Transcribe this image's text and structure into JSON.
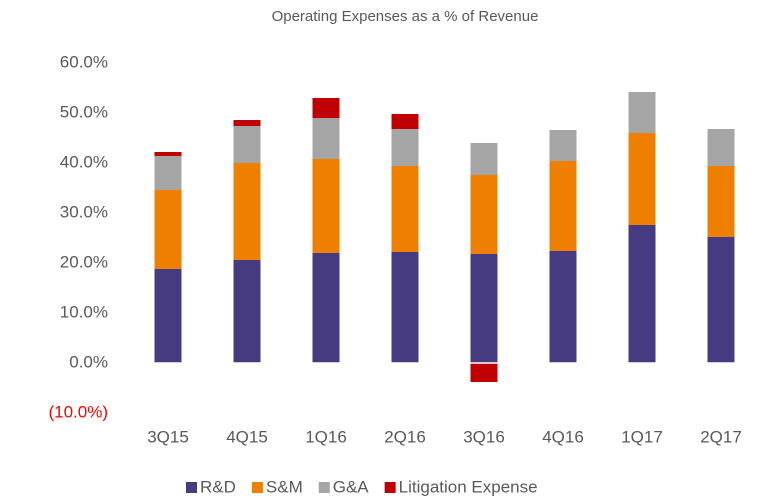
{
  "chart_data": {
    "type": "stacked_bar",
    "title": "Operating Expenses as a % of Revenue",
    "categories": [
      "3Q15",
      "4Q15",
      "1Q16",
      "2Q16",
      "3Q16",
      "4Q16",
      "1Q17",
      "2Q17"
    ],
    "series": [
      {
        "name": "R&D",
        "color": "#463b80",
        "values": [
          18.8,
          20.6,
          22.0,
          22.2,
          21.8,
          22.4,
          27.6,
          25.2
        ]
      },
      {
        "name": "S&M",
        "color": "#ee7f00",
        "values": [
          15.8,
          19.4,
          18.8,
          17.2,
          15.8,
          18.0,
          18.4,
          14.2
        ]
      },
      {
        "name": "G&A",
        "color": "#a5a5a5",
        "values": [
          6.8,
          7.4,
          8.2,
          7.4,
          6.4,
          6.2,
          8.2,
          7.4
        ]
      },
      {
        "name": "Litigation Expense",
        "color": "#c00000",
        "values": [
          0.8,
          1.2,
          4.0,
          3.0,
          -3.8,
          0,
          0,
          0
        ]
      }
    ],
    "ylim": [
      -10,
      60
    ],
    "yticks": [
      {
        "value": -10,
        "label": "(10.0%)"
      },
      {
        "value": 0,
        "label": "0.0%"
      },
      {
        "value": 10,
        "label": "10.0%"
      },
      {
        "value": 20,
        "label": "20.0%"
      },
      {
        "value": 30,
        "label": "30.0%"
      },
      {
        "value": 40,
        "label": "40.0%"
      },
      {
        "value": 50,
        "label": "50.0%"
      },
      {
        "value": 60,
        "label": "60.0%"
      }
    ],
    "negative_tick_color": "#ff0000",
    "grid": false,
    "legend": "bottom"
  }
}
